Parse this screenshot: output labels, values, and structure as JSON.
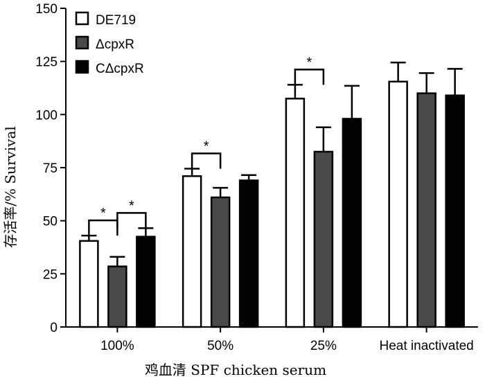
{
  "chart_data": {
    "type": "bar",
    "xlabel": "鸡血清 SPF chicken serum",
    "ylabel": "存活率/% Survival",
    "ylim": [
      0,
      150
    ],
    "yticks": [
      0,
      25,
      50,
      75,
      100,
      125,
      150
    ],
    "categories": [
      "100%",
      "50%",
      "25%",
      "Heat inactivated"
    ],
    "series": [
      {
        "name": "DE719",
        "color": "#ffffff",
        "values": [
          40.5,
          71,
          107.5,
          115.5
        ],
        "errors": [
          2.5,
          3.5,
          6.5,
          9
        ]
      },
      {
        "name": "ΔcpxR",
        "color": "#4a4a4a",
        "values": [
          28.5,
          61,
          82.5,
          110
        ],
        "errors": [
          4.5,
          4.5,
          11.5,
          9.5
        ]
      },
      {
        "name": "CΔcpxR",
        "color": "#000000",
        "values": [
          42.5,
          69,
          98,
          109
        ],
        "errors": [
          4,
          2.5,
          15.5,
          12.5
        ]
      }
    ],
    "legend": {
      "position": "top-left"
    },
    "grid": false,
    "significance": [
      {
        "category": 0,
        "from_series": 0,
        "to_series": 1,
        "label": "*"
      },
      {
        "category": 0,
        "from_series": 1,
        "to_series": 2,
        "label": "*"
      },
      {
        "category": 1,
        "from_series": 0,
        "to_series": 1,
        "label": "*"
      },
      {
        "category": 2,
        "from_series": 0,
        "to_series": 1,
        "label": "*"
      }
    ]
  }
}
